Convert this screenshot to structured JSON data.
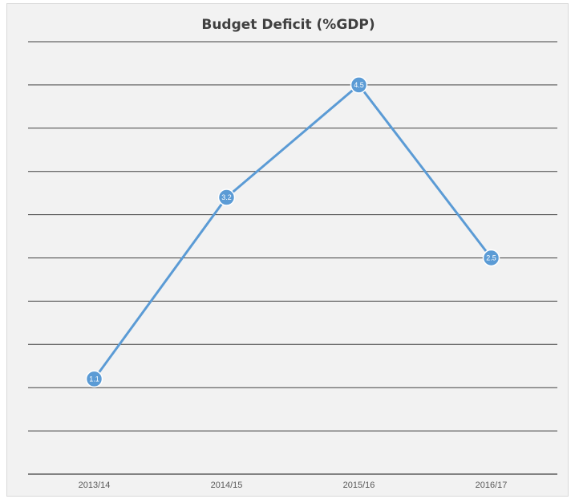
{
  "chart_data": {
    "type": "line",
    "title": "Budget Deficit (%GDP)",
    "categories": [
      "2013/14",
      "2014/15",
      "2015/16",
      "2016/17"
    ],
    "series": [
      {
        "values": [
          1.1,
          3.2,
          4.5,
          2.5
        ]
      }
    ],
    "data_labels": [
      "1.1",
      "3.2",
      "4.5",
      "2.5"
    ],
    "ylim": [
      0,
      5.0
    ],
    "grid": true,
    "line_color": "#5b9bd5",
    "background_color": "#f2f2f2",
    "grid_color": "#404040"
  }
}
